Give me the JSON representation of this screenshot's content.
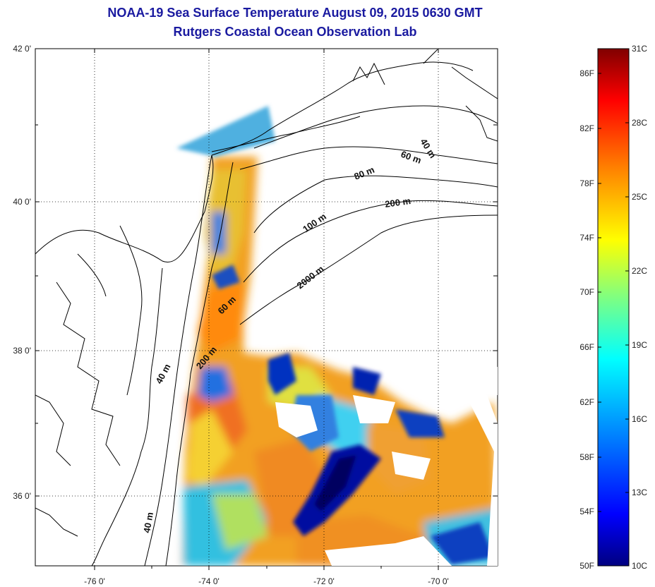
{
  "title": {
    "line1": "NOAA-19 Sea Surface Temperature August 09, 2015 0630 GMT",
    "line2": "Rutgers Coastal Ocean Observation Lab"
  },
  "map": {
    "lat_ticks": [
      {
        "label": "42 0'",
        "value": 42
      },
      {
        "label": "40 0'",
        "value": 40
      },
      {
        "label": "38 0'",
        "value": 38
      },
      {
        "label": "36 0'",
        "value": 36
      }
    ],
    "lon_ticks": [
      {
        "label": "-76 0'",
        "value": -76
      },
      {
        "label": "-74 0'",
        "value": -74
      },
      {
        "label": "-72 0'",
        "value": -72
      },
      {
        "label": "-70 0'",
        "value": -70
      }
    ],
    "contour_labels": [
      "40 m",
      "60 m",
      "80 m",
      "200 m",
      "100 m",
      "2000 m",
      "60 m",
      "200 m",
      "40 m",
      "40 m"
    ]
  },
  "colorbar": {
    "fahrenheit_labels": [
      "86F",
      "82F",
      "78F",
      "74F",
      "70F",
      "66F",
      "62F",
      "58F",
      "54F",
      "50F"
    ],
    "celsius_labels": [
      "31C",
      "28C",
      "25C",
      "22C",
      "19C",
      "16C",
      "13C",
      "10C"
    ],
    "colors": [
      "#800000",
      "#ff0000",
      "#ff8000",
      "#ffff00",
      "#80ff80",
      "#00ffff",
      "#0080ff",
      "#0000ff",
      "#000080"
    ]
  }
}
